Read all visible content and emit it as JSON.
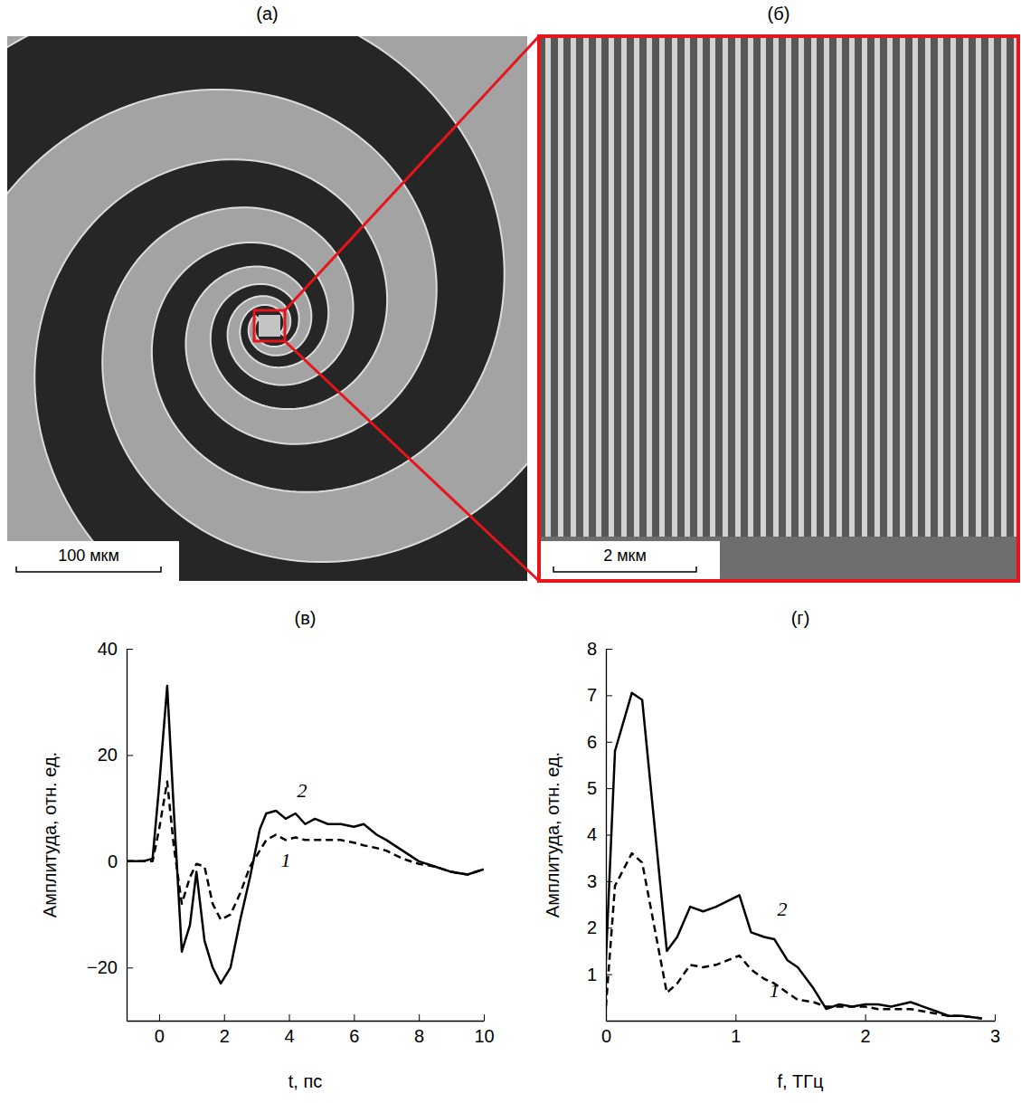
{
  "images": [
    {
      "label": "(а)",
      "scale_bar": "100 мкм"
    },
    {
      "label": "(б)",
      "scale_bar": "2 мкм"
    }
  ],
  "chart_data": [
    {
      "type": "line",
      "title": "(в)",
      "xlabel": "t, пс",
      "ylabel": "Амплитуда, отн. ед.",
      "x": [
        -1,
        -0.5,
        -0.2,
        0,
        0.25,
        0.45,
        0.7,
        0.95,
        1.15,
        1.4,
        1.65,
        1.9,
        2.2,
        2.5,
        2.8,
        3.1,
        3.3,
        3.6,
        3.9,
        4.2,
        4.5,
        4.8,
        5.2,
        5.6,
        6,
        6.3,
        6.7,
        7,
        7.5,
        8,
        8.5,
        9,
        9.5,
        10
      ],
      "series": [
        {
          "color": "#000000",
          "line_style": "dashed",
          "values": [
            0,
            0,
            0,
            6,
            15,
            3,
            -8,
            -3,
            -0.5,
            -1,
            -8,
            -11,
            -10,
            -6,
            -1,
            2,
            4,
            5,
            4,
            4.5,
            4,
            4,
            4,
            4,
            3.5,
            3,
            2.5,
            2,
            0.5,
            -0.5,
            -1,
            -2,
            -2.5,
            -1.5
          ]
        },
        {
          "color": "#000000",
          "line_style": "solid",
          "values": [
            0,
            0,
            0.5,
            14,
            33,
            10,
            -17,
            -12,
            -2,
            -15,
            -20,
            -23,
            -20,
            -11,
            -3,
            6,
            9,
            9.5,
            8,
            9,
            7,
            8,
            7,
            7,
            6.5,
            7,
            5,
            4,
            2,
            0,
            -1,
            -2,
            -2.5,
            -1.5
          ]
        }
      ],
      "annotations": [
        {
          "text": "1",
          "x": 3.9,
          "y": -1
        },
        {
          "text": "2",
          "x": 4.4,
          "y": 12
        }
      ],
      "xlim": [
        -1,
        10
      ],
      "xticks": [
        0,
        2,
        4,
        6,
        8,
        10
      ],
      "ylim": [
        -30,
        40
      ],
      "yticks": [
        {
          "value": -20,
          "label": "−20"
        },
        0,
        20,
        40
      ],
      "grid": false
    },
    {
      "type": "line",
      "title": "(г)",
      "xlabel": "f, ТГц",
      "ylabel": "Амплитуда, отн. ед.",
      "x": [
        0,
        0.07,
        0.2,
        0.28,
        0.47,
        0.55,
        0.65,
        0.75,
        0.85,
        1.03,
        1.12,
        1.22,
        1.3,
        1.4,
        1.48,
        1.6,
        1.7,
        1.8,
        1.9,
        2.0,
        2.1,
        2.2,
        2.35,
        2.45,
        2.55,
        2.65,
        2.75,
        2.9
      ],
      "series": [
        {
          "color": "#000000",
          "line_style": "dashed",
          "values": [
            0.3,
            2.9,
            3.6,
            3.4,
            0.6,
            0.8,
            1.2,
            1.15,
            1.2,
            1.4,
            1.1,
            0.9,
            0.8,
            0.6,
            0.45,
            0.4,
            0.3,
            0.3,
            0.3,
            0.3,
            0.25,
            0.25,
            0.25,
            0.2,
            0.15,
            0.1,
            0.1,
            0.05
          ]
        },
        {
          "color": "#000000",
          "line_style": "solid",
          "values": [
            1.3,
            5.8,
            7.05,
            6.9,
            1.5,
            1.8,
            2.45,
            2.35,
            2.45,
            2.7,
            1.9,
            1.8,
            1.75,
            1.3,
            1.15,
            0.7,
            0.25,
            0.35,
            0.3,
            0.35,
            0.35,
            0.3,
            0.4,
            0.3,
            0.2,
            0.1,
            0.1,
            0.05
          ]
        }
      ],
      "annotations": [
        {
          "text": "1",
          "x": 1.3,
          "y": 0.5
        },
        {
          "text": "2",
          "x": 1.36,
          "y": 2.25
        }
      ],
      "xlim": [
        0,
        3
      ],
      "xticks": [
        0,
        1,
        2,
        3
      ],
      "ylim": [
        0,
        8
      ],
      "yticks": [
        1,
        2,
        3,
        4,
        5,
        6,
        7,
        8
      ],
      "grid": false
    }
  ]
}
